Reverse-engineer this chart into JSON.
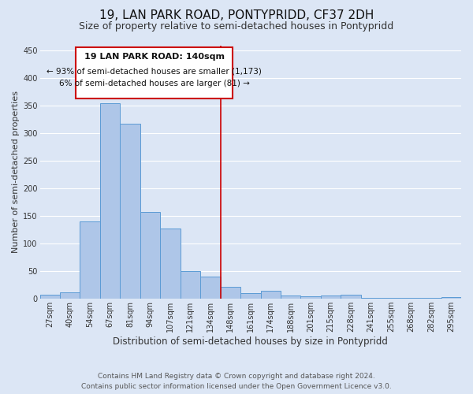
{
  "title": "19, LAN PARK ROAD, PONTYPRIDD, CF37 2DH",
  "subtitle": "Size of property relative to semi-detached houses in Pontypridd",
  "xlabel": "Distribution of semi-detached houses by size in Pontypridd",
  "ylabel": "Number of semi-detached properties",
  "categories": [
    "27sqm",
    "40sqm",
    "54sqm",
    "67sqm",
    "81sqm",
    "94sqm",
    "107sqm",
    "121sqm",
    "134sqm",
    "148sqm",
    "161sqm",
    "174sqm",
    "188sqm",
    "201sqm",
    "215sqm",
    "228sqm",
    "241sqm",
    "255sqm",
    "268sqm",
    "282sqm",
    "295sqm"
  ],
  "bar_heights": [
    7,
    12,
    140,
    355,
    318,
    158,
    128,
    50,
    40,
    22,
    10,
    15,
    6,
    5,
    6,
    7,
    1,
    1,
    1,
    1,
    3
  ],
  "bar_color": "#aec6e8",
  "bar_edge_color": "#5b9bd5",
  "bg_color": "#dce6f5",
  "grid_color": "#ffffff",
  "vline_x": 8.5,
  "vline_color": "#cc0000",
  "annotation_title": "19 LAN PARK ROAD: 140sqm",
  "annotation_line1": "← 93% of semi-detached houses are smaller (1,173)",
  "annotation_line2": "6% of semi-detached houses are larger (81) →",
  "annotation_box_color": "#cc0000",
  "ylim": [
    0,
    460
  ],
  "yticks": [
    0,
    50,
    100,
    150,
    200,
    250,
    300,
    350,
    400,
    450
  ],
  "footer_line1": "Contains HM Land Registry data © Crown copyright and database right 2024.",
  "footer_line2": "Contains public sector information licensed under the Open Government Licence v3.0.",
  "title_fontsize": 11,
  "subtitle_fontsize": 9,
  "tick_fontsize": 7,
  "ylabel_fontsize": 8,
  "xlabel_fontsize": 8.5,
  "footer_fontsize": 6.5
}
